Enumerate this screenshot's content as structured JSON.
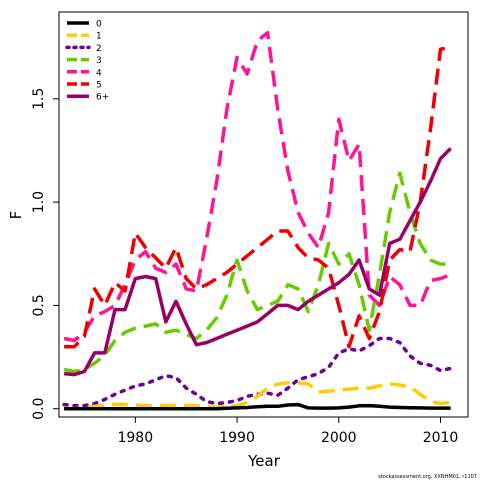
{
  "chart_data": {
    "type": "line",
    "xlabel": "Year",
    "ylabel": "F",
    "xlim": [
      1972.5,
      2012.7
    ],
    "ylim": [
      -0.04,
      1.92
    ],
    "xticks": [
      1980,
      1990,
      2000,
      2010
    ],
    "xtick_labels": [
      "1980",
      "1990",
      "2000",
      "2010"
    ],
    "yticks": [
      0.0,
      0.5,
      1.0,
      1.5
    ],
    "ytick_labels": [
      "0.0",
      "0.5",
      "1.0",
      "1.5"
    ],
    "legend_position": "top-left",
    "credit": "stockassessment.org, XXNHM01, r1107",
    "x": [
      1973,
      1974,
      1975,
      1976,
      1977,
      1978,
      1979,
      1980,
      1981,
      1982,
      1983,
      1984,
      1985,
      1986,
      1987,
      1988,
      1989,
      1990,
      1991,
      1992,
      1993,
      1994,
      1995,
      1996,
      1997,
      1998,
      1999,
      2000,
      2001,
      2002,
      2003,
      2004,
      2005,
      2006,
      2007,
      2008,
      2009,
      2010,
      2011
    ],
    "series": [
      {
        "name": "0",
        "color": "#000000",
        "dash": "solid",
        "values": [
          0.0,
          0.0,
          0.0,
          0.0,
          0.0,
          0.0,
          0.0,
          0.0,
          0.0,
          0.0,
          0.0,
          0.0,
          0.0,
          0.0,
          0.0,
          0.0,
          0.002,
          0.004,
          0.006,
          0.01,
          0.012,
          0.012,
          0.018,
          0.02,
          0.004,
          0.003,
          0.003,
          0.004,
          0.008,
          0.014,
          0.015,
          0.012,
          0.008,
          0.006,
          0.005,
          0.004,
          0.003,
          0.003,
          0.003
        ]
      },
      {
        "name": "1",
        "color": "#FFCC00",
        "dash": "dash",
        "values": [
          0.0,
          0.0,
          0.005,
          0.012,
          0.018,
          0.022,
          0.02,
          0.018,
          0.015,
          0.015,
          0.016,
          0.016,
          0.016,
          0.014,
          0.01,
          0.008,
          0.01,
          0.015,
          0.03,
          0.06,
          0.1,
          0.12,
          0.125,
          0.125,
          0.12,
          0.08,
          0.085,
          0.09,
          0.095,
          0.1,
          0.1,
          0.11,
          0.12,
          0.115,
          0.105,
          0.07,
          0.035,
          0.025,
          0.03
        ]
      },
      {
        "name": "2",
        "color": "#6B0099",
        "dash": "dot",
        "values": [
          0.02,
          0.015,
          0.015,
          0.025,
          0.045,
          0.07,
          0.09,
          0.11,
          0.12,
          0.14,
          0.16,
          0.15,
          0.1,
          0.07,
          0.035,
          0.025,
          0.03,
          0.04,
          0.06,
          0.07,
          0.075,
          0.065,
          0.1,
          0.14,
          0.155,
          0.17,
          0.2,
          0.27,
          0.29,
          0.28,
          0.305,
          0.34,
          0.34,
          0.32,
          0.255,
          0.22,
          0.21,
          0.185,
          0.195
        ]
      },
      {
        "name": "3",
        "color": "#66CC00",
        "dash": "dash",
        "values": [
          0.19,
          0.18,
          0.19,
          0.22,
          0.26,
          0.33,
          0.37,
          0.39,
          0.4,
          0.41,
          0.37,
          0.38,
          0.36,
          0.34,
          0.38,
          0.44,
          0.55,
          0.72,
          0.57,
          0.48,
          0.5,
          0.52,
          0.6,
          0.58,
          0.47,
          0.6,
          0.8,
          0.7,
          0.75,
          0.6,
          0.38,
          0.65,
          0.95,
          1.14,
          0.95,
          0.8,
          0.72,
          0.7,
          0.7
        ]
      },
      {
        "name": "4",
        "color": "#FF1493",
        "dash": "dash",
        "values": [
          0.34,
          0.33,
          0.37,
          0.45,
          0.47,
          0.5,
          0.6,
          0.72,
          0.76,
          0.68,
          0.66,
          0.7,
          0.58,
          0.57,
          0.82,
          1.1,
          1.45,
          1.7,
          1.62,
          1.78,
          1.82,
          1.45,
          1.15,
          0.95,
          0.85,
          0.78,
          0.95,
          1.4,
          1.2,
          1.28,
          0.55,
          0.5,
          0.64,
          0.6,
          0.5,
          0.5,
          0.62,
          0.63,
          0.65
        ]
      },
      {
        "name": "5",
        "color": "#EE0000",
        "dash": "dash",
        "values": [
          0.3,
          0.3,
          0.35,
          0.58,
          0.5,
          0.61,
          0.57,
          0.85,
          0.78,
          0.73,
          0.68,
          0.78,
          0.63,
          0.58,
          0.6,
          0.63,
          0.66,
          0.7,
          0.74,
          0.78,
          0.82,
          0.86,
          0.86,
          0.78,
          0.73,
          0.72,
          0.68,
          0.5,
          0.3,
          0.45,
          0.34,
          0.47,
          0.72,
          0.77,
          0.76,
          1.0,
          1.35,
          1.74,
          1.75
        ]
      },
      {
        "name": "6+",
        "color": "#990066",
        "dash": "solid",
        "values": [
          0.17,
          0.165,
          0.18,
          0.27,
          0.27,
          0.48,
          0.48,
          0.63,
          0.64,
          0.63,
          0.42,
          0.52,
          0.41,
          0.31,
          0.32,
          0.34,
          0.36,
          0.38,
          0.4,
          0.42,
          0.46,
          0.5,
          0.5,
          0.48,
          0.52,
          0.55,
          0.58,
          0.61,
          0.65,
          0.72,
          0.58,
          0.55,
          0.8,
          0.82,
          0.91,
          1.0,
          1.1,
          1.21,
          1.26
        ]
      }
    ]
  }
}
